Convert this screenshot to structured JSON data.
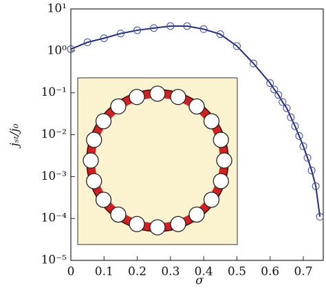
{
  "chart_data": {
    "type": "line",
    "x_label": "σ",
    "y_label": "jₛₜ/j₀",
    "y_log": true,
    "xlim": [
      0,
      0.76
    ],
    "ylim": [
      1e-05,
      10
    ],
    "xticks": [
      0,
      0.1,
      0.2,
      0.3,
      0.4,
      0.5,
      0.6,
      0.7
    ],
    "yticks": [
      {
        "value": 1e-05,
        "label": "10⁻⁵"
      },
      {
        "value": 0.0001,
        "label": "10⁻⁴"
      },
      {
        "value": 0.001,
        "label": "10⁻³"
      },
      {
        "value": 0.01,
        "label": "10⁻²"
      },
      {
        "value": 0.1,
        "label": "10⁻¹"
      },
      {
        "value": 1,
        "label": "10⁰"
      },
      {
        "value": 10,
        "label": "10¹"
      }
    ],
    "x": [
      0,
      0.05,
      0.1,
      0.15,
      0.2,
      0.25,
      0.3,
      0.35,
      0.4,
      0.45,
      0.5,
      0.55,
      0.6,
      0.6125,
      0.625,
      0.6375,
      0.65,
      0.6625,
      0.675,
      0.6875,
      0.7,
      0.7125,
      0.725,
      0.7375,
      0.75
    ],
    "series": [
      {
        "color": "#1f2a7a",
        "values": [
          1.1,
          1.6,
          2.0,
          2.6,
          3.1,
          3.5,
          3.9,
          3.9,
          3.3,
          2.5,
          1.3,
          0.5,
          0.17,
          0.12,
          0.089,
          0.06,
          0.043,
          0.026,
          0.016,
          0.0093,
          0.0053,
          0.0028,
          0.0014,
          0.00059,
          0.00011
        ]
      }
    ]
  }
}
